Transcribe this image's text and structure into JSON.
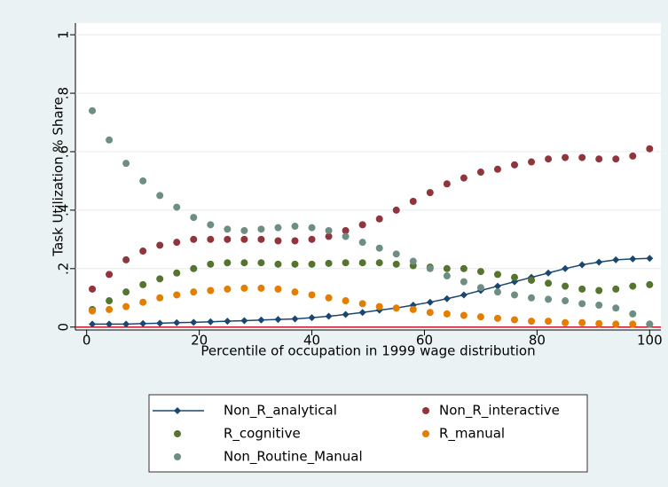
{
  "chart_data": {
    "type": "scatter",
    "ylabel": "Task Utilization % Share",
    "xlabel": "Percentile of occupation in 1999 wage distribution",
    "x": [
      1,
      4,
      7,
      10,
      13,
      16,
      19,
      22,
      25,
      28,
      31,
      34,
      37,
      40,
      43,
      46,
      49,
      52,
      55,
      58,
      61,
      64,
      67,
      70,
      73,
      76,
      79,
      82,
      85,
      88,
      91,
      94,
      97,
      100
    ],
    "xlim": [
      -2,
      102
    ],
    "xticks": [
      0,
      20,
      40,
      60,
      80,
      100
    ],
    "ylim": [
      -0.01,
      1.04
    ],
    "yticks": [
      0,
      {
        "value": 0.2,
        "label": ".2"
      },
      {
        "value": 0.4,
        "label": ".4"
      },
      {
        "value": 0.6,
        "label": ".6"
      },
      {
        "value": 0.8,
        "label": ".8"
      },
      1
    ],
    "grid": true,
    "zero_line_color": "#c0142a",
    "series": [
      {
        "name": "Non_R_analytical",
        "color": "#1a476f",
        "marker": "diamond",
        "line": true,
        "values": [
          0.01,
          0.01,
          0.01,
          0.012,
          0.013,
          0.015,
          0.016,
          0.018,
          0.02,
          0.022,
          0.024,
          0.026,
          0.028,
          0.032,
          0.037,
          0.043,
          0.05,
          0.058,
          0.065,
          0.075,
          0.085,
          0.097,
          0.11,
          0.125,
          0.14,
          0.155,
          0.17,
          0.185,
          0.2,
          0.213,
          0.222,
          0.23,
          0.233,
          0.235
        ]
      },
      {
        "name": "Non_R_interactive",
        "color": "#90353b",
        "marker": "circle",
        "line": false,
        "values": [
          0.13,
          0.18,
          0.23,
          0.26,
          0.28,
          0.29,
          0.3,
          0.3,
          0.3,
          0.3,
          0.3,
          0.295,
          0.295,
          0.3,
          0.31,
          0.33,
          0.35,
          0.37,
          0.4,
          0.43,
          0.46,
          0.49,
          0.51,
          0.53,
          0.54,
          0.555,
          0.565,
          0.575,
          0.58,
          0.58,
          0.575,
          0.575,
          0.585,
          0.61
        ]
      },
      {
        "name": "R_cognitive",
        "color": "#55752f",
        "marker": "circle",
        "line": false,
        "values": [
          0.06,
          0.09,
          0.12,
          0.145,
          0.165,
          0.185,
          0.2,
          0.215,
          0.22,
          0.22,
          0.22,
          0.215,
          0.215,
          0.215,
          0.218,
          0.22,
          0.22,
          0.22,
          0.215,
          0.21,
          0.205,
          0.2,
          0.2,
          0.19,
          0.18,
          0.17,
          0.16,
          0.15,
          0.14,
          0.13,
          0.125,
          0.13,
          0.14,
          0.145
        ]
      },
      {
        "name": "R_manual",
        "color": "#e37e00",
        "marker": "circle",
        "line": false,
        "values": [
          0.055,
          0.06,
          0.07,
          0.085,
          0.1,
          0.11,
          0.12,
          0.125,
          0.13,
          0.133,
          0.133,
          0.13,
          0.12,
          0.11,
          0.1,
          0.09,
          0.08,
          0.07,
          0.065,
          0.06,
          0.05,
          0.045,
          0.04,
          0.035,
          0.03,
          0.025,
          0.02,
          0.02,
          0.015,
          0.015,
          0.012,
          0.01,
          0.01,
          0.01
        ]
      },
      {
        "name": "Non_Routine_Manual",
        "color": "#6e8e84",
        "marker": "circle",
        "line": false,
        "values": [
          0.74,
          0.64,
          0.56,
          0.5,
          0.45,
          0.41,
          0.375,
          0.35,
          0.335,
          0.33,
          0.335,
          0.34,
          0.345,
          0.34,
          0.33,
          0.31,
          0.29,
          0.27,
          0.25,
          0.225,
          0.2,
          0.175,
          0.155,
          0.135,
          0.12,
          0.11,
          0.1,
          0.095,
          0.09,
          0.08,
          0.075,
          0.065,
          0.045,
          0.01
        ]
      }
    ]
  }
}
